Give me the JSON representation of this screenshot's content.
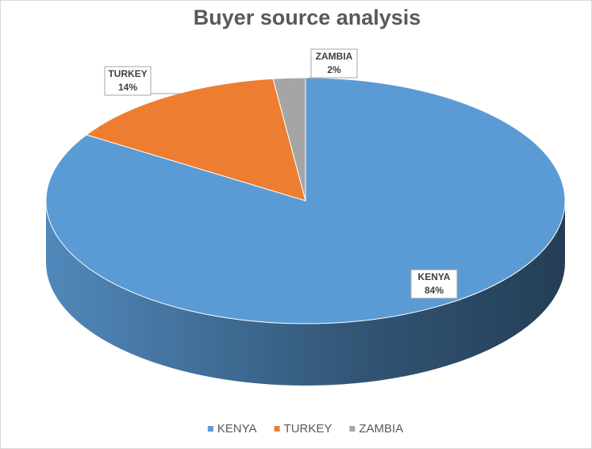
{
  "chart_data": {
    "type": "pie3d",
    "title": "Buyer source analysis",
    "categories": [
      "KENYA",
      "TURKEY",
      "ZAMBIA"
    ],
    "values": [
      84,
      14,
      2
    ],
    "value_labels": [
      "84%",
      "14%",
      "2%"
    ],
    "colors": [
      "#5b9bd5",
      "#ed7d31",
      "#a5a5a5"
    ],
    "legend": "bottom"
  }
}
